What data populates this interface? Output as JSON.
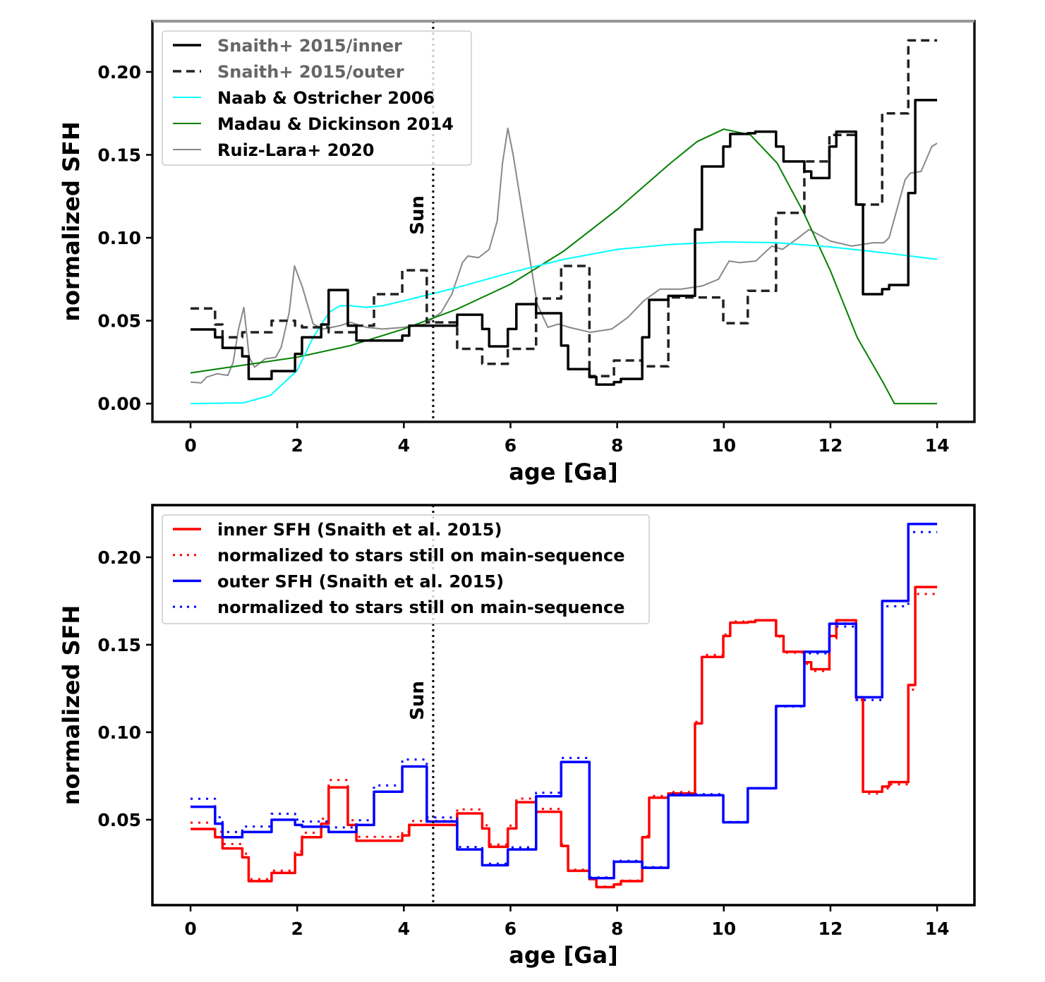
{
  "chart_data": [
    {
      "type": "line",
      "xlabel": "age [Ga]",
      "ylabel": "normalized SFH",
      "xlim": [
        -0.715,
        14.7
      ],
      "ylim": [
        -0.011,
        0.2306
      ],
      "xticks": [
        "0",
        "2",
        "4",
        "6",
        "8",
        "10",
        "12",
        "14"
      ],
      "yticks": [
        "0.00",
        "0.05",
        "0.10",
        "0.15",
        "0.20"
      ],
      "legend_position": "top-left",
      "annotation": {
        "text": "Sun",
        "x": 4.55
      },
      "series": [
        {
          "name": "Snaith+ 2015/inner",
          "style": "solid-step",
          "color": "#000000",
          "x": [
            0,
            0.46,
            0.6,
            0.97,
            1.09,
            1.52,
            1.96,
            2.09,
            2.45,
            2.59,
            2.95,
            3.11,
            3.97,
            4.1,
            5.0,
            5.47,
            5.6,
            5.95,
            6.11,
            6.48,
            6.95,
            7.08,
            7.48,
            7.61,
            7.94,
            8.07,
            8.47,
            8.6,
            8.96,
            9.46,
            9.59,
            9.99,
            10.12,
            10.45,
            10.59,
            10.98,
            11.12,
            11.51,
            11.64,
            11.98,
            12.11,
            12.48,
            12.61,
            12.97,
            13.1,
            13.46,
            13.59,
            14.0
          ],
          "y": [
            0.0447,
            0.04,
            0.0336,
            0.0285,
            0.0149,
            0.0196,
            0.03,
            0.04,
            0.0477,
            0.0685,
            0.047,
            0.038,
            0.041,
            0.047,
            0.0536,
            0.045,
            0.0345,
            0.045,
            0.06,
            0.0545,
            0.035,
            0.0208,
            0.016,
            0.0115,
            0.013,
            0.0149,
            0.04,
            0.0626,
            0.065,
            0.105,
            0.143,
            0.155,
            0.1626,
            0.163,
            0.164,
            0.155,
            0.146,
            0.14,
            0.136,
            0.155,
            0.164,
            0.12,
            0.066,
            0.069,
            0.0715,
            0.127,
            0.183,
            0.183
          ]
        },
        {
          "name": "Snaith+ 2015/outer",
          "style": "dashed-step",
          "color": "#222222",
          "x": [
            0,
            0.46,
            0.6,
            0.97,
            1.52,
            1.96,
            2.09,
            2.59,
            3.11,
            3.44,
            3.97,
            4.43,
            5.0,
            5.47,
            5.95,
            6.48,
            6.95,
            7.48,
            7.94,
            8.47,
            8.96,
            9.46,
            9.99,
            10.45,
            10.98,
            11.51,
            11.98,
            12.48,
            12.97,
            13.46,
            14.0
          ],
          "y": [
            0.0574,
            0.0477,
            0.04,
            0.043,
            0.05,
            0.047,
            0.046,
            0.043,
            0.047,
            0.066,
            0.0804,
            0.049,
            0.033,
            0.024,
            0.033,
            0.0634,
            0.083,
            0.0166,
            0.026,
            0.0225,
            0.064,
            0.064,
            0.0485,
            0.068,
            0.115,
            0.146,
            0.162,
            0.12,
            0.175,
            0.219,
            0.219
          ]
        },
        {
          "name": "Naab & Ostricher 2006",
          "style": "line",
          "color": "#00ffff",
          "x": [
            0,
            1.0,
            1.5,
            2.0,
            2.3,
            2.6,
            2.8,
            3.0,
            3.3,
            3.6,
            4,
            5,
            6,
            7,
            8,
            9,
            10,
            11,
            12,
            13,
            14
          ],
          "y": [
            0,
            0.0005,
            0.005,
            0.02,
            0.04,
            0.055,
            0.059,
            0.059,
            0.058,
            0.059,
            0.062,
            0.07,
            0.079,
            0.087,
            0.093,
            0.096,
            0.0975,
            0.097,
            0.0945,
            0.091,
            0.087
          ]
        },
        {
          "name": "Madau & Dickinson 2014",
          "style": "line",
          "color": "#008000",
          "x": [
            0,
            2,
            3,
            4,
            5,
            6,
            7,
            8,
            9,
            9.5,
            10,
            10.5,
            11,
            11.5,
            12,
            12.5,
            13,
            13.2,
            14
          ],
          "y": [
            0.0185,
            0.028,
            0.035,
            0.045,
            0.057,
            0.072,
            0.092,
            0.117,
            0.145,
            0.158,
            0.1655,
            0.162,
            0.145,
            0.115,
            0.08,
            0.04,
            0.012,
            0,
            0
          ]
        },
        {
          "name": "Ruiz-Lara+ 2020",
          "style": "line",
          "color": "#888888",
          "x": [
            0,
            0.2,
            0.3,
            0.5,
            0.7,
            0.8,
            0.9,
            1.0,
            1.1,
            1.2,
            1.4,
            1.6,
            1.7,
            1.85,
            1.95,
            2.1,
            2.3,
            2.5,
            2.8,
            3.0,
            3.3,
            3.6,
            4.0,
            4.4,
            4.7,
            4.9,
            5.1,
            5.2,
            5.4,
            5.6,
            5.75,
            5.85,
            5.95,
            6.05,
            6.3,
            6.5,
            6.7,
            6.9,
            7.1,
            7.5,
            7.9,
            8.2,
            8.5,
            8.8,
            9.2,
            9.6,
            9.9,
            10.1,
            10.3,
            10.6,
            10.9,
            11.1,
            11.4,
            11.6,
            12.0,
            12.4,
            12.8,
            13.0,
            13.1,
            13.4,
            13.5,
            13.7,
            13.9,
            14.0
          ],
          "y": [
            0.013,
            0.0125,
            0.016,
            0.018,
            0.017,
            0.025,
            0.045,
            0.058,
            0.028,
            0.022,
            0.027,
            0.028,
            0.034,
            0.055,
            0.083,
            0.07,
            0.048,
            0.045,
            0.047,
            0.049,
            0.046,
            0.045,
            0.046,
            0.048,
            0.055,
            0.066,
            0.085,
            0.089,
            0.088,
            0.093,
            0.11,
            0.145,
            0.166,
            0.15,
            0.1,
            0.06,
            0.046,
            0.048,
            0.046,
            0.043,
            0.045,
            0.052,
            0.062,
            0.069,
            0.069,
            0.071,
            0.075,
            0.086,
            0.085,
            0.086,
            0.095,
            0.093,
            0.1,
            0.105,
            0.098,
            0.095,
            0.097,
            0.097,
            0.1,
            0.135,
            0.139,
            0.14,
            0.155,
            0.157
          ]
        }
      ]
    },
    {
      "type": "line",
      "xlabel": "age [Ga]",
      "ylabel": "normalized SFH",
      "xlim": [
        -0.715,
        14.7
      ],
      "ylim": [
        0.0012,
        0.2298
      ],
      "xticks": [
        "0",
        "2",
        "4",
        "6",
        "8",
        "10",
        "12",
        "14"
      ],
      "yticks": [
        "0.05",
        "0.10",
        "0.15",
        "0.20"
      ],
      "legend_position": "top-left",
      "annotation": {
        "text": "Sun",
        "x": 4.55
      },
      "series": [
        {
          "name": "inner SFH (Snaith et al. 2015)",
          "style": "solid-step",
          "color": "#ff0000",
          "ref": "inner"
        },
        {
          "name": "normalized to stars still on main-sequence",
          "style": "dotted-step",
          "color": "#ff0000",
          "ref": "inner",
          "y": [
            0.0483,
            0.0431,
            0.0361,
            0.0306,
            0.016,
            0.0209,
            0.032,
            0.0426,
            0.0506,
            0.0727,
            0.0497,
            0.0402,
            0.0431,
            0.0493,
            0.0559,
            0.0468,
            0.0358,
            0.0466,
            0.0621,
            0.0562,
            0.036,
            0.0214,
            0.0164,
            0.0118,
            0.0133,
            0.0152,
            0.0407,
            0.0636,
            0.0658,
            0.1059,
            0.1442,
            0.1558,
            0.1633,
            0.1633,
            0.1641,
            0.1546,
            0.1455,
            0.1391,
            0.135,
            0.1535,
            0.1622,
            0.1184,
            0.065,
            0.0678,
            0.0702,
            0.1243,
            0.179,
            0.179
          ]
        },
        {
          "name": "outer SFH (Snaith et al. 2015)",
          "style": "solid-step",
          "color": "#0000ff",
          "ref": "outer"
        },
        {
          "name": "normalized to stars still on main-sequence",
          "style": "dotted-step",
          "color": "#0000ff",
          "ref": "outer",
          "y": [
            0.062,
            0.0514,
            0.043,
            0.0461,
            0.0534,
            0.0501,
            0.049,
            0.0456,
            0.0497,
            0.0696,
            0.0844,
            0.0513,
            0.0344,
            0.0249,
            0.0342,
            0.0654,
            0.0853,
            0.017,
            0.0265,
            0.0229,
            0.0648,
            0.0646,
            0.0487,
            0.0681,
            0.1147,
            0.1451,
            0.1604,
            0.1184,
            0.172,
            0.2144,
            0.2144
          ]
        }
      ]
    }
  ]
}
